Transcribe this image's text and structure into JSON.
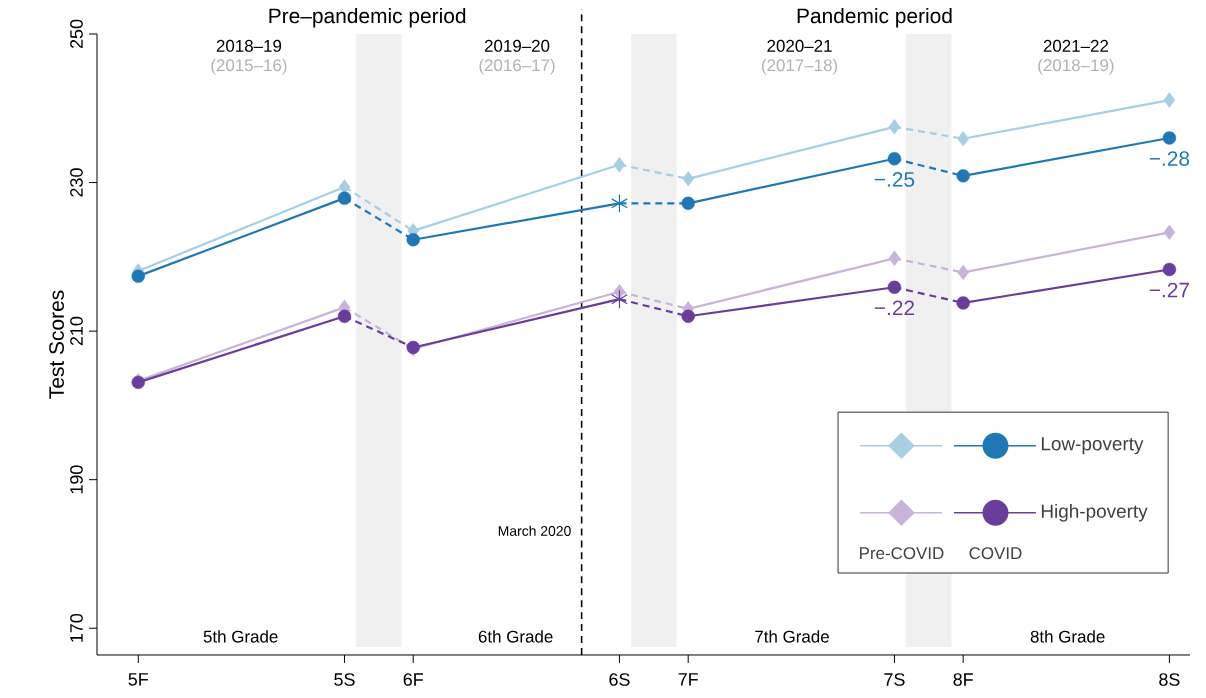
{
  "chart_data": {
    "type": "line",
    "ylabel": "Test Scores",
    "categories": [
      "5F",
      null,
      null,
      "5S",
      "6F",
      null,
      null,
      "6S",
      "7F",
      null,
      null,
      "7S",
      "8F",
      null,
      null,
      "8S"
    ],
    "ylim": [
      166.4,
      250
    ],
    "yticks": [
      170,
      190,
      210,
      230,
      250
    ],
    "legend": "bottom right",
    "series": [
      {
        "color": "#a6cfe3",
        "marker": "diamond",
        "x": [
          "5F",
          "5S",
          "6F",
          "6S",
          "7F",
          "7S",
          "8F",
          "8S"
        ],
        "values": [
          218.1,
          229.4,
          223.5,
          232.4,
          230.5,
          237.5,
          235.9,
          241.1
        ]
      },
      {
        "name": "Low-poverty",
        "color": "#1f78b4",
        "marker": "circle",
        "x": [
          "5F",
          "5S",
          "6F",
          "6S",
          "7F",
          "7S",
          "8F",
          "8S"
        ],
        "values": [
          217.4,
          227.9,
          222.3,
          227.2,
          227.2,
          233.2,
          230.9,
          236.0
        ]
      },
      {
        "type": "scatter",
        "color": "#1f78b4",
        "marker": "cross",
        "x": [
          "6S"
        ],
        "values": [
          227.2
        ]
      },
      {
        "color": "#c8b3d9",
        "marker": "diamond",
        "x": [
          "5F",
          "5S",
          "6F",
          "6S",
          "7F",
          "7S",
          "8F",
          "8S"
        ],
        "values": [
          203.3,
          213.2,
          207.6,
          215.3,
          213.0,
          219.8,
          217.9,
          223.3
        ]
      },
      {
        "name": "High-poverty",
        "color": "#6a3d9a",
        "marker": "circle",
        "x": [
          "5F",
          "5S",
          "6F",
          "6S",
          "7F",
          "7S",
          "8F",
          "8S"
        ],
        "values": [
          203.1,
          212.0,
          207.8,
          214.3,
          212.0,
          215.9,
          213.8,
          218.3
        ]
      },
      {
        "type": "scatter",
        "color": "#6a3d9a",
        "marker": "cross",
        "x": [
          "6S"
        ],
        "values": [
          214.3
        ]
      }
    ],
    "annotations": [
      "Pre–pandemic period",
      "Pandemic period",
      "2018–19",
      "(2015–16)",
      "2019–20",
      "(2016–17)",
      "2020–21",
      "(2017–18)",
      "2021–22",
      "(2018–19)",
      "5th Grade",
      "6th Grade",
      "7th Grade",
      "8th Grade",
      "March 2020",
      "Pre-COVID",
      "COVID",
      {
        "text": "−.25",
        "x": "7S",
        "y": 233.2
      },
      {
        "text": "−.28",
        "x": "8S",
        "y": 236.0
      },
      {
        "text": "−.22",
        "x": "7S",
        "y": 215.9
      },
      {
        "text": "−.27",
        "x": "8S",
        "y": 218.3
      }
    ]
  }
}
